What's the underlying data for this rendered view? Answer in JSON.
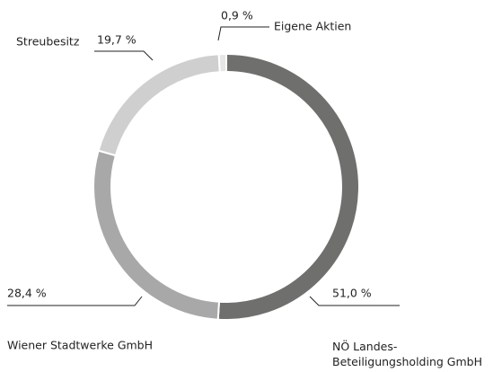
{
  "chart_data": {
    "type": "donut",
    "categories": [
      "NÖ Landes-\nBeteiligungsholding GmbH",
      "Wiener Stadtwerke GmbH",
      "Streubesitz",
      "Eigene Aktien"
    ],
    "values": [
      51.0,
      28.4,
      19.7,
      0.9
    ],
    "value_labels": [
      "51,0 %",
      "28,4 %",
      "19,7 %",
      "0,9 %"
    ],
    "colors": [
      "#6f6f6d",
      "#a8a8a8",
      "#cfcfcf",
      "#e6e6e6"
    ]
  }
}
